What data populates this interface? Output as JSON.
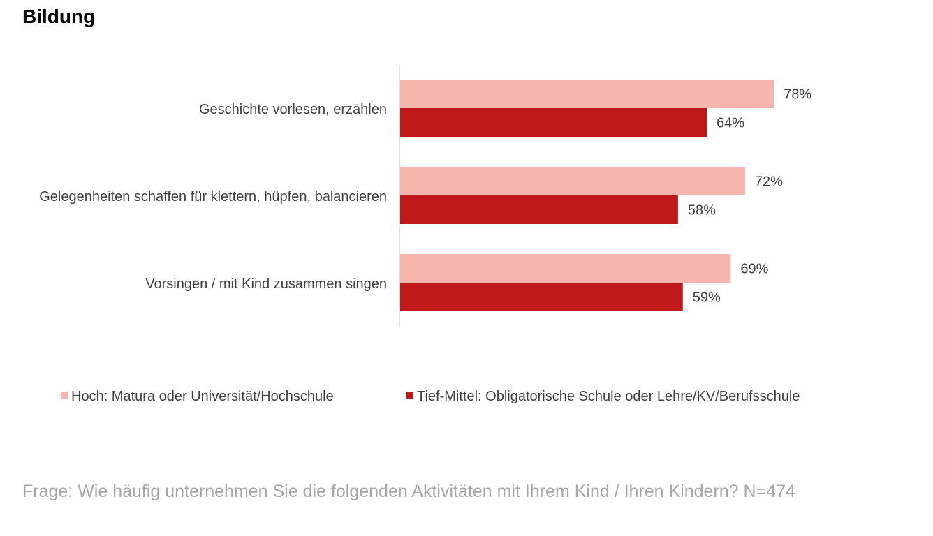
{
  "title": "Bildung",
  "footnote": "Frage: Wie häufig unternehmen Sie die folgenden Aktivitäten mit Ihrem Kind / Ihren Kindern? N=474",
  "chart_data": {
    "type": "bar",
    "orientation": "horizontal",
    "title": "Bildung",
    "categories": [
      "Geschichte vorlesen, erzählen",
      "Gelegenheiten schaffen für klettern, hüpfen, balancieren",
      "Vorsingen / mit Kind zusammen singen"
    ],
    "series": [
      {
        "name": "Hoch: Matura oder Universität/Hochschule",
        "color": "#f7b6ad",
        "values": [
          78,
          72,
          69
        ],
        "labels": [
          "78%",
          "72%",
          "69%"
        ]
      },
      {
        "name": "Tief-Mittel: Obligatorische Schule oder Lehre/KV/Berufsschule",
        "color": "#c0191b",
        "values": [
          64,
          58,
          59
        ],
        "labels": [
          "64%",
          "58%",
          "59%"
        ]
      }
    ],
    "unit": "%",
    "xlim": [
      0,
      100
    ],
    "grid": false,
    "legend": "bottom"
  }
}
